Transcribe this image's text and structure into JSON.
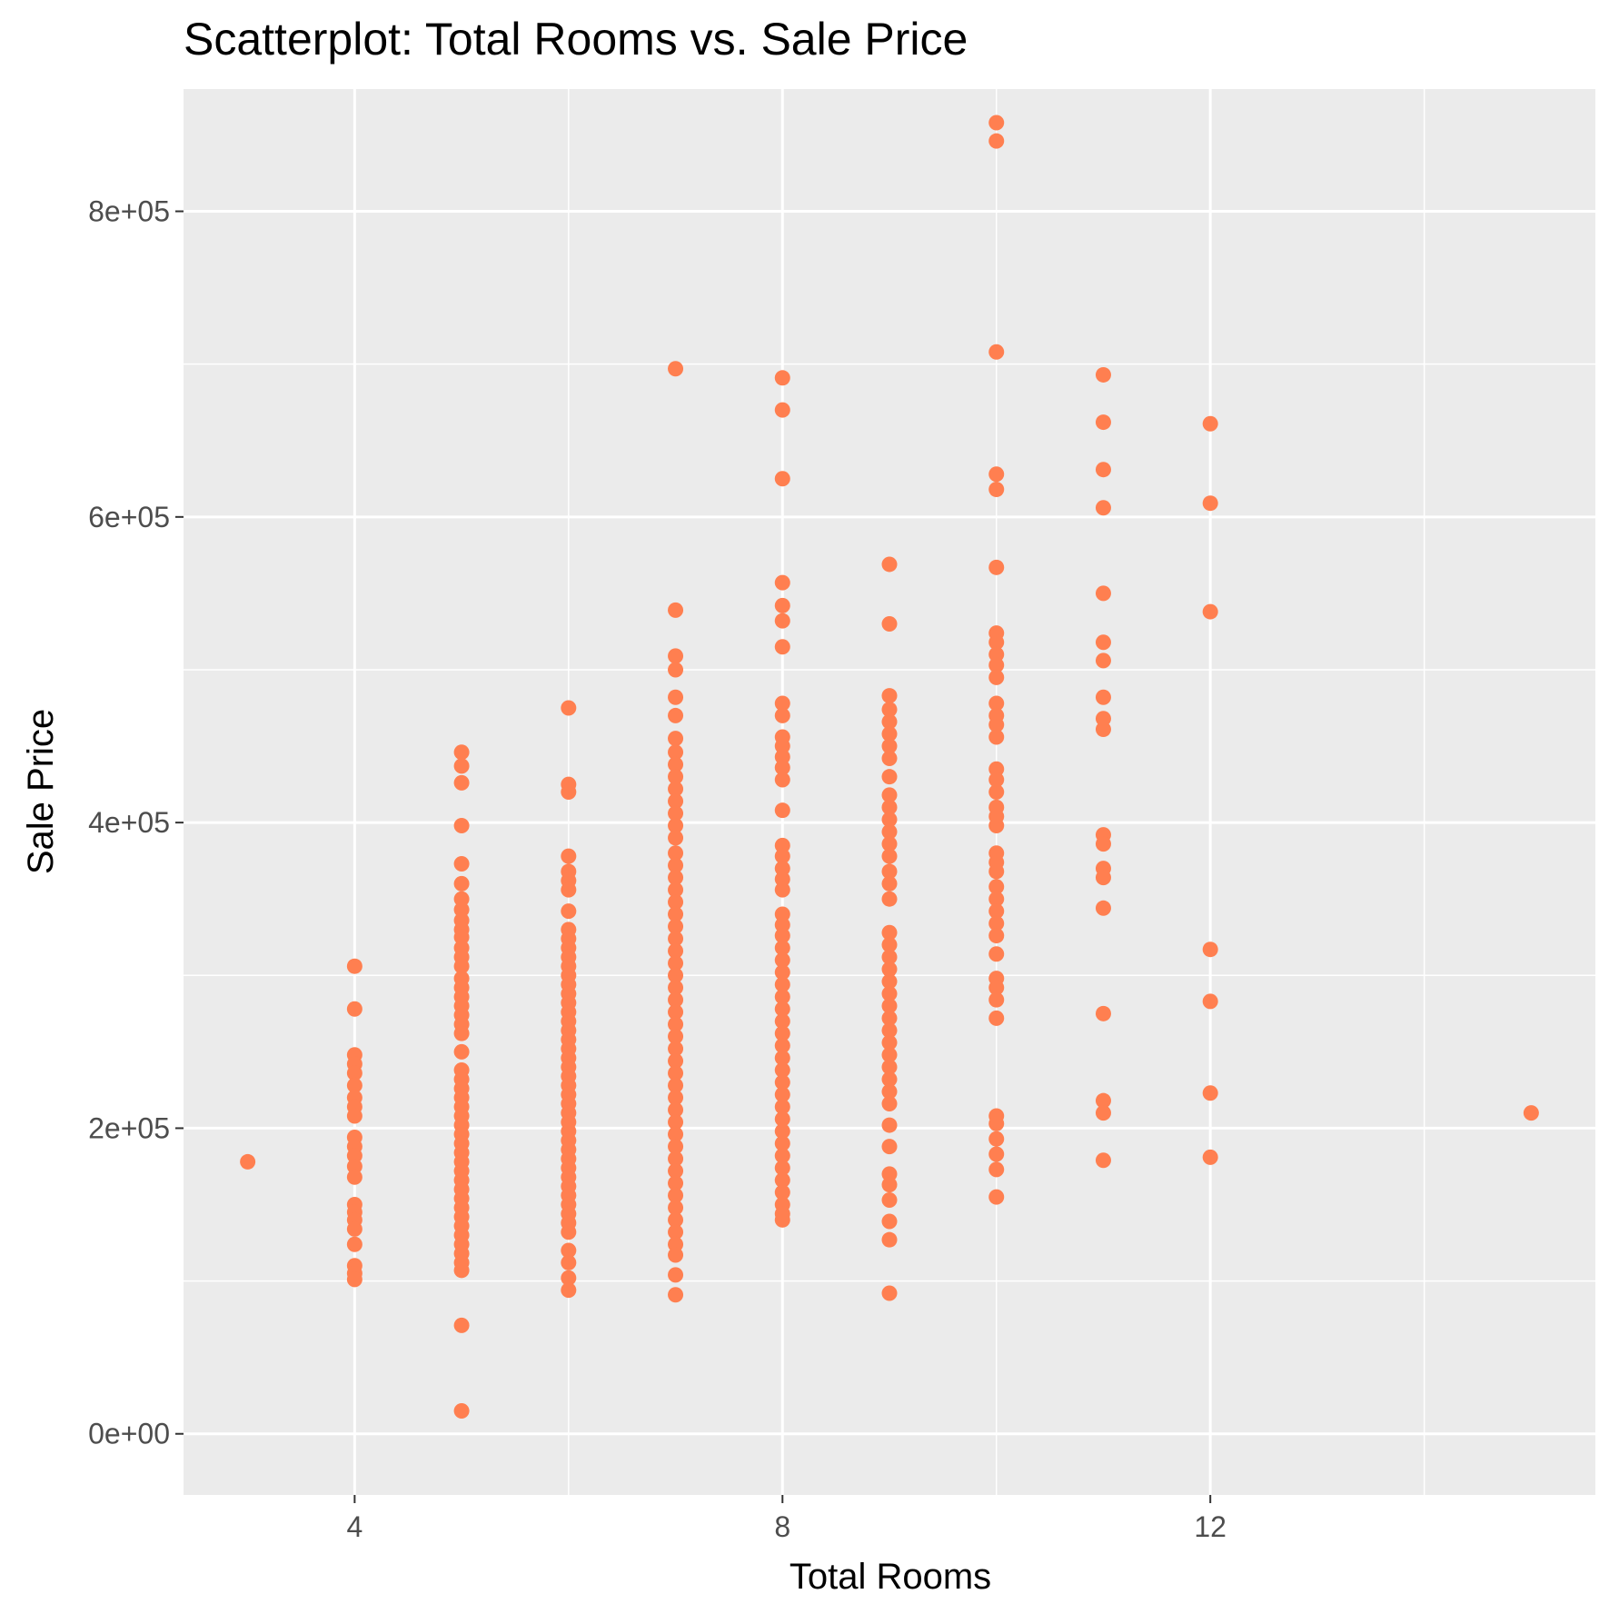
{
  "chart_data": {
    "type": "scatter",
    "title": "Scatterplot: Total Rooms vs. Sale Price",
    "xlabel": "Total Rooms",
    "ylabel": "Sale Price",
    "xlim": [
      2.4,
      15.6
    ],
    "ylim": [
      -40000,
      880000
    ],
    "x_ticks": [
      4,
      8,
      12
    ],
    "x_tick_labels": [
      "4",
      "8",
      "12"
    ],
    "x_minor_ticks": [
      6,
      10,
      14
    ],
    "y_ticks": [
      0,
      200000,
      400000,
      600000,
      800000
    ],
    "y_tick_labels": [
      "0e+00",
      "2e+05",
      "4e+05",
      "6e+05",
      "8e+05"
    ],
    "y_minor_ticks": [
      100000,
      300000,
      500000,
      700000
    ],
    "grid": true,
    "legend": "none",
    "colors": {
      "panel": "#ebebeb",
      "grid": "#ffffff",
      "point": "#ff7f50",
      "tick": "#333333"
    },
    "points": [
      {
        "x": 3,
        "y": 178000
      },
      {
        "x": 15,
        "y": 210000
      },
      {
        "x": 4,
        "y": 306000
      },
      {
        "x": 4,
        "y": 278000
      },
      {
        "x": 4,
        "y": 248000
      },
      {
        "x": 4,
        "y": 242000
      },
      {
        "x": 4,
        "y": 236000
      },
      {
        "x": 4,
        "y": 228000
      },
      {
        "x": 4,
        "y": 220000
      },
      {
        "x": 4,
        "y": 214000
      },
      {
        "x": 4,
        "y": 208000
      },
      {
        "x": 4,
        "y": 194000
      },
      {
        "x": 4,
        "y": 188000
      },
      {
        "x": 4,
        "y": 182000
      },
      {
        "x": 4,
        "y": 175000
      },
      {
        "x": 4,
        "y": 168000
      },
      {
        "x": 4,
        "y": 150000
      },
      {
        "x": 4,
        "y": 145000
      },
      {
        "x": 4,
        "y": 140000
      },
      {
        "x": 4,
        "y": 134000
      },
      {
        "x": 4,
        "y": 124000
      },
      {
        "x": 4,
        "y": 110000
      },
      {
        "x": 4,
        "y": 105000
      },
      {
        "x": 4,
        "y": 101000
      },
      {
        "x": 5,
        "y": 446000
      },
      {
        "x": 5,
        "y": 437000
      },
      {
        "x": 5,
        "y": 426000
      },
      {
        "x": 5,
        "y": 398000
      },
      {
        "x": 5,
        "y": 373000
      },
      {
        "x": 5,
        "y": 360000
      },
      {
        "x": 5,
        "y": 350000
      },
      {
        "x": 5,
        "y": 343000
      },
      {
        "x": 5,
        "y": 336000
      },
      {
        "x": 5,
        "y": 330000
      },
      {
        "x": 5,
        "y": 325000
      },
      {
        "x": 5,
        "y": 318000
      },
      {
        "x": 5,
        "y": 312000
      },
      {
        "x": 5,
        "y": 306000
      },
      {
        "x": 5,
        "y": 298000
      },
      {
        "x": 5,
        "y": 292000
      },
      {
        "x": 5,
        "y": 286000
      },
      {
        "x": 5,
        "y": 280000
      },
      {
        "x": 5,
        "y": 274000
      },
      {
        "x": 5,
        "y": 268000
      },
      {
        "x": 5,
        "y": 262000
      },
      {
        "x": 5,
        "y": 250000
      },
      {
        "x": 5,
        "y": 238000
      },
      {
        "x": 5,
        "y": 232000
      },
      {
        "x": 5,
        "y": 226000
      },
      {
        "x": 5,
        "y": 220000
      },
      {
        "x": 5,
        "y": 214000
      },
      {
        "x": 5,
        "y": 208000
      },
      {
        "x": 5,
        "y": 202000
      },
      {
        "x": 5,
        "y": 196000
      },
      {
        "x": 5,
        "y": 190000
      },
      {
        "x": 5,
        "y": 184000
      },
      {
        "x": 5,
        "y": 178000
      },
      {
        "x": 5,
        "y": 172000
      },
      {
        "x": 5,
        "y": 166000
      },
      {
        "x": 5,
        "y": 160000
      },
      {
        "x": 5,
        "y": 154000
      },
      {
        "x": 5,
        "y": 148000
      },
      {
        "x": 5,
        "y": 142000
      },
      {
        "x": 5,
        "y": 136000
      },
      {
        "x": 5,
        "y": 130000
      },
      {
        "x": 5,
        "y": 124000
      },
      {
        "x": 5,
        "y": 118000
      },
      {
        "x": 5,
        "y": 112000
      },
      {
        "x": 5,
        "y": 107000
      },
      {
        "x": 5,
        "y": 71000
      },
      {
        "x": 5,
        "y": 15000
      },
      {
        "x": 6,
        "y": 475000
      },
      {
        "x": 6,
        "y": 425000
      },
      {
        "x": 6,
        "y": 420000
      },
      {
        "x": 6,
        "y": 378000
      },
      {
        "x": 6,
        "y": 368000
      },
      {
        "x": 6,
        "y": 362000
      },
      {
        "x": 6,
        "y": 356000
      },
      {
        "x": 6,
        "y": 342000
      },
      {
        "x": 6,
        "y": 330000
      },
      {
        "x": 6,
        "y": 324000
      },
      {
        "x": 6,
        "y": 318000
      },
      {
        "x": 6,
        "y": 312000
      },
      {
        "x": 6,
        "y": 306000
      },
      {
        "x": 6,
        "y": 300000
      },
      {
        "x": 6,
        "y": 294000
      },
      {
        "x": 6,
        "y": 288000
      },
      {
        "x": 6,
        "y": 282000
      },
      {
        "x": 6,
        "y": 276000
      },
      {
        "x": 6,
        "y": 270000
      },
      {
        "x": 6,
        "y": 264000
      },
      {
        "x": 6,
        "y": 258000
      },
      {
        "x": 6,
        "y": 252000
      },
      {
        "x": 6,
        "y": 246000
      },
      {
        "x": 6,
        "y": 240000
      },
      {
        "x": 6,
        "y": 234000
      },
      {
        "x": 6,
        "y": 228000
      },
      {
        "x": 6,
        "y": 222000
      },
      {
        "x": 6,
        "y": 216000
      },
      {
        "x": 6,
        "y": 210000
      },
      {
        "x": 6,
        "y": 204000
      },
      {
        "x": 6,
        "y": 198000
      },
      {
        "x": 6,
        "y": 192000
      },
      {
        "x": 6,
        "y": 186000
      },
      {
        "x": 6,
        "y": 180000
      },
      {
        "x": 6,
        "y": 174000
      },
      {
        "x": 6,
        "y": 168000
      },
      {
        "x": 6,
        "y": 162000
      },
      {
        "x": 6,
        "y": 156000
      },
      {
        "x": 6,
        "y": 150000
      },
      {
        "x": 6,
        "y": 144000
      },
      {
        "x": 6,
        "y": 138000
      },
      {
        "x": 6,
        "y": 132000
      },
      {
        "x": 6,
        "y": 120000
      },
      {
        "x": 6,
        "y": 112000
      },
      {
        "x": 6,
        "y": 102000
      },
      {
        "x": 6,
        "y": 94000
      },
      {
        "x": 7,
        "y": 697000
      },
      {
        "x": 7,
        "y": 539000
      },
      {
        "x": 7,
        "y": 509000
      },
      {
        "x": 7,
        "y": 500000
      },
      {
        "x": 7,
        "y": 482000
      },
      {
        "x": 7,
        "y": 470000
      },
      {
        "x": 7,
        "y": 455000
      },
      {
        "x": 7,
        "y": 446000
      },
      {
        "x": 7,
        "y": 438000
      },
      {
        "x": 7,
        "y": 430000
      },
      {
        "x": 7,
        "y": 422000
      },
      {
        "x": 7,
        "y": 414000
      },
      {
        "x": 7,
        "y": 406000
      },
      {
        "x": 7,
        "y": 398000
      },
      {
        "x": 7,
        "y": 390000
      },
      {
        "x": 7,
        "y": 380000
      },
      {
        "x": 7,
        "y": 372000
      },
      {
        "x": 7,
        "y": 364000
      },
      {
        "x": 7,
        "y": 356000
      },
      {
        "x": 7,
        "y": 348000
      },
      {
        "x": 7,
        "y": 340000
      },
      {
        "x": 7,
        "y": 332000
      },
      {
        "x": 7,
        "y": 324000
      },
      {
        "x": 7,
        "y": 316000
      },
      {
        "x": 7,
        "y": 308000
      },
      {
        "x": 7,
        "y": 300000
      },
      {
        "x": 7,
        "y": 292000
      },
      {
        "x": 7,
        "y": 284000
      },
      {
        "x": 7,
        "y": 276000
      },
      {
        "x": 7,
        "y": 268000
      },
      {
        "x": 7,
        "y": 260000
      },
      {
        "x": 7,
        "y": 252000
      },
      {
        "x": 7,
        "y": 244000
      },
      {
        "x": 7,
        "y": 236000
      },
      {
        "x": 7,
        "y": 228000
      },
      {
        "x": 7,
        "y": 220000
      },
      {
        "x": 7,
        "y": 212000
      },
      {
        "x": 7,
        "y": 204000
      },
      {
        "x": 7,
        "y": 196000
      },
      {
        "x": 7,
        "y": 188000
      },
      {
        "x": 7,
        "y": 180000
      },
      {
        "x": 7,
        "y": 172000
      },
      {
        "x": 7,
        "y": 164000
      },
      {
        "x": 7,
        "y": 156000
      },
      {
        "x": 7,
        "y": 148000
      },
      {
        "x": 7,
        "y": 140000
      },
      {
        "x": 7,
        "y": 132000
      },
      {
        "x": 7,
        "y": 124000
      },
      {
        "x": 7,
        "y": 117000
      },
      {
        "x": 7,
        "y": 104000
      },
      {
        "x": 7,
        "y": 91000
      },
      {
        "x": 8,
        "y": 691000
      },
      {
        "x": 8,
        "y": 670000
      },
      {
        "x": 8,
        "y": 625000
      },
      {
        "x": 8,
        "y": 557000
      },
      {
        "x": 8,
        "y": 542000
      },
      {
        "x": 8,
        "y": 532000
      },
      {
        "x": 8,
        "y": 515000
      },
      {
        "x": 8,
        "y": 478000
      },
      {
        "x": 8,
        "y": 470000
      },
      {
        "x": 8,
        "y": 456000
      },
      {
        "x": 8,
        "y": 450000
      },
      {
        "x": 8,
        "y": 443000
      },
      {
        "x": 8,
        "y": 436000
      },
      {
        "x": 8,
        "y": 428000
      },
      {
        "x": 8,
        "y": 408000
      },
      {
        "x": 8,
        "y": 385000
      },
      {
        "x": 8,
        "y": 378000
      },
      {
        "x": 8,
        "y": 370000
      },
      {
        "x": 8,
        "y": 363000
      },
      {
        "x": 8,
        "y": 356000
      },
      {
        "x": 8,
        "y": 340000
      },
      {
        "x": 8,
        "y": 333000
      },
      {
        "x": 8,
        "y": 326000
      },
      {
        "x": 8,
        "y": 318000
      },
      {
        "x": 8,
        "y": 310000
      },
      {
        "x": 8,
        "y": 302000
      },
      {
        "x": 8,
        "y": 294000
      },
      {
        "x": 8,
        "y": 286000
      },
      {
        "x": 8,
        "y": 278000
      },
      {
        "x": 8,
        "y": 270000
      },
      {
        "x": 8,
        "y": 262000
      },
      {
        "x": 8,
        "y": 254000
      },
      {
        "x": 8,
        "y": 246000
      },
      {
        "x": 8,
        "y": 238000
      },
      {
        "x": 8,
        "y": 230000
      },
      {
        "x": 8,
        "y": 222000
      },
      {
        "x": 8,
        "y": 214000
      },
      {
        "x": 8,
        "y": 206000
      },
      {
        "x": 8,
        "y": 198000
      },
      {
        "x": 8,
        "y": 190000
      },
      {
        "x": 8,
        "y": 182000
      },
      {
        "x": 8,
        "y": 174000
      },
      {
        "x": 8,
        "y": 166000
      },
      {
        "x": 8,
        "y": 158000
      },
      {
        "x": 8,
        "y": 150000
      },
      {
        "x": 8,
        "y": 144000
      },
      {
        "x": 8,
        "y": 140000
      },
      {
        "x": 9,
        "y": 569000
      },
      {
        "x": 9,
        "y": 530000
      },
      {
        "x": 9,
        "y": 483000
      },
      {
        "x": 9,
        "y": 474000
      },
      {
        "x": 9,
        "y": 466000
      },
      {
        "x": 9,
        "y": 458000
      },
      {
        "x": 9,
        "y": 450000
      },
      {
        "x": 9,
        "y": 442000
      },
      {
        "x": 9,
        "y": 430000
      },
      {
        "x": 9,
        "y": 418000
      },
      {
        "x": 9,
        "y": 410000
      },
      {
        "x": 9,
        "y": 402000
      },
      {
        "x": 9,
        "y": 394000
      },
      {
        "x": 9,
        "y": 386000
      },
      {
        "x": 9,
        "y": 378000
      },
      {
        "x": 9,
        "y": 368000
      },
      {
        "x": 9,
        "y": 360000
      },
      {
        "x": 9,
        "y": 350000
      },
      {
        "x": 9,
        "y": 328000
      },
      {
        "x": 9,
        "y": 320000
      },
      {
        "x": 9,
        "y": 312000
      },
      {
        "x": 9,
        "y": 304000
      },
      {
        "x": 9,
        "y": 296000
      },
      {
        "x": 9,
        "y": 288000
      },
      {
        "x": 9,
        "y": 280000
      },
      {
        "x": 9,
        "y": 272000
      },
      {
        "x": 9,
        "y": 264000
      },
      {
        "x": 9,
        "y": 256000
      },
      {
        "x": 9,
        "y": 248000
      },
      {
        "x": 9,
        "y": 240000
      },
      {
        "x": 9,
        "y": 232000
      },
      {
        "x": 9,
        "y": 224000
      },
      {
        "x": 9,
        "y": 216000
      },
      {
        "x": 9,
        "y": 202000
      },
      {
        "x": 9,
        "y": 188000
      },
      {
        "x": 9,
        "y": 170000
      },
      {
        "x": 9,
        "y": 163000
      },
      {
        "x": 9,
        "y": 153000
      },
      {
        "x": 9,
        "y": 139000
      },
      {
        "x": 9,
        "y": 127000
      },
      {
        "x": 9,
        "y": 92000
      },
      {
        "x": 10,
        "y": 858000
      },
      {
        "x": 10,
        "y": 846000
      },
      {
        "x": 10,
        "y": 708000
      },
      {
        "x": 10,
        "y": 628000
      },
      {
        "x": 10,
        "y": 618000
      },
      {
        "x": 10,
        "y": 567000
      },
      {
        "x": 10,
        "y": 524000
      },
      {
        "x": 10,
        "y": 518000
      },
      {
        "x": 10,
        "y": 510000
      },
      {
        "x": 10,
        "y": 503000
      },
      {
        "x": 10,
        "y": 495000
      },
      {
        "x": 10,
        "y": 478000
      },
      {
        "x": 10,
        "y": 470000
      },
      {
        "x": 10,
        "y": 464000
      },
      {
        "x": 10,
        "y": 456000
      },
      {
        "x": 10,
        "y": 435000
      },
      {
        "x": 10,
        "y": 428000
      },
      {
        "x": 10,
        "y": 420000
      },
      {
        "x": 10,
        "y": 410000
      },
      {
        "x": 10,
        "y": 404000
      },
      {
        "x": 10,
        "y": 398000
      },
      {
        "x": 10,
        "y": 380000
      },
      {
        "x": 10,
        "y": 374000
      },
      {
        "x": 10,
        "y": 368000
      },
      {
        "x": 10,
        "y": 358000
      },
      {
        "x": 10,
        "y": 350000
      },
      {
        "x": 10,
        "y": 342000
      },
      {
        "x": 10,
        "y": 334000
      },
      {
        "x": 10,
        "y": 326000
      },
      {
        "x": 10,
        "y": 314000
      },
      {
        "x": 10,
        "y": 298000
      },
      {
        "x": 10,
        "y": 292000
      },
      {
        "x": 10,
        "y": 284000
      },
      {
        "x": 10,
        "y": 272000
      },
      {
        "x": 10,
        "y": 208000
      },
      {
        "x": 10,
        "y": 203000
      },
      {
        "x": 10,
        "y": 193000
      },
      {
        "x": 10,
        "y": 183000
      },
      {
        "x": 10,
        "y": 173000
      },
      {
        "x": 10,
        "y": 155000
      },
      {
        "x": 11,
        "y": 693000
      },
      {
        "x": 11,
        "y": 662000
      },
      {
        "x": 11,
        "y": 631000
      },
      {
        "x": 11,
        "y": 606000
      },
      {
        "x": 11,
        "y": 550000
      },
      {
        "x": 11,
        "y": 518000
      },
      {
        "x": 11,
        "y": 506000
      },
      {
        "x": 11,
        "y": 482000
      },
      {
        "x": 11,
        "y": 468000
      },
      {
        "x": 11,
        "y": 461000
      },
      {
        "x": 11,
        "y": 392000
      },
      {
        "x": 11,
        "y": 386000
      },
      {
        "x": 11,
        "y": 370000
      },
      {
        "x": 11,
        "y": 364000
      },
      {
        "x": 11,
        "y": 344000
      },
      {
        "x": 11,
        "y": 275000
      },
      {
        "x": 11,
        "y": 218000
      },
      {
        "x": 11,
        "y": 210000
      },
      {
        "x": 11,
        "y": 179000
      },
      {
        "x": 12,
        "y": 661000
      },
      {
        "x": 12,
        "y": 609000
      },
      {
        "x": 12,
        "y": 538000
      },
      {
        "x": 12,
        "y": 317000
      },
      {
        "x": 12,
        "y": 283000
      },
      {
        "x": 12,
        "y": 223000
      },
      {
        "x": 12,
        "y": 181000
      }
    ]
  }
}
